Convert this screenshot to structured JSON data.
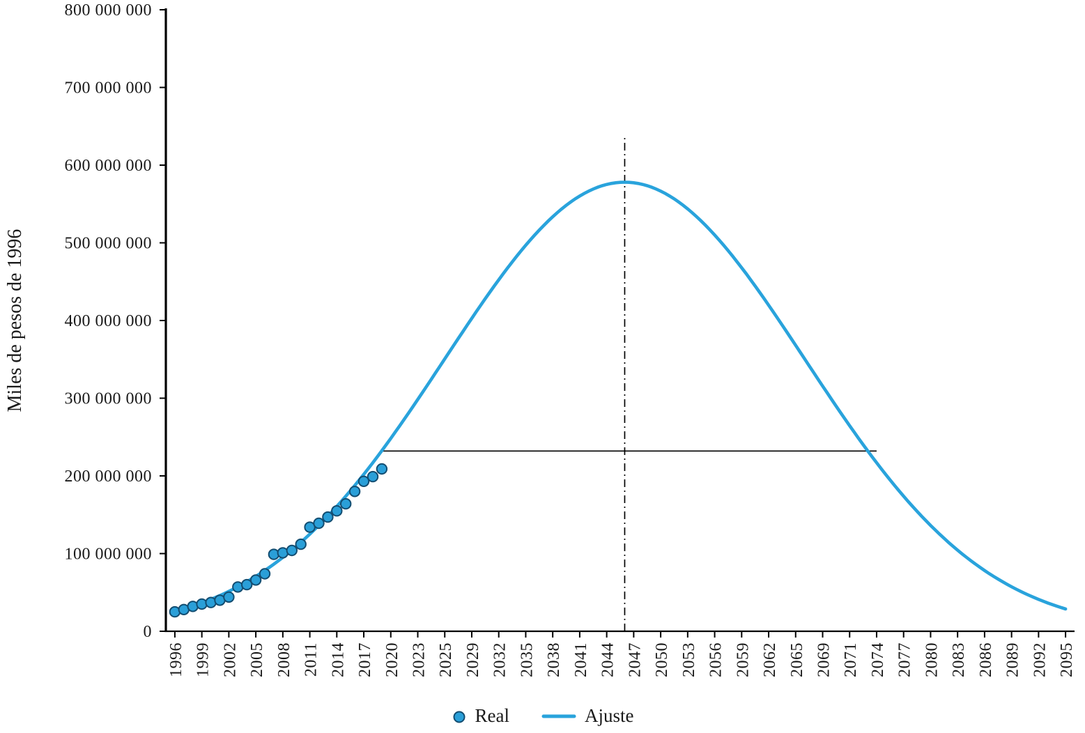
{
  "chart_data": {
    "type": "scatter",
    "title": "",
    "xlabel": "",
    "ylabel": "Miles de pesos de 1996",
    "ylim": [
      0,
      800000000
    ],
    "xlim": [
      1996,
      2095
    ],
    "grid": false,
    "background_color": "#ffffff",
    "text_color": "#1a1a1a",
    "axis_color": "#000000",
    "y_ticks": [
      0,
      100000000,
      200000000,
      300000000,
      400000000,
      500000000,
      600000000,
      700000000,
      800000000
    ],
    "y_tick_labels": [
      "0",
      "100 000 000",
      "200 000 000",
      "300 000 000",
      "400 000 000",
      "500 000 000",
      "600 000 000",
      "700 000 000",
      "800 000 000"
    ],
    "x_tick_years": [
      1996,
      1999,
      2002,
      2005,
      2008,
      2011,
      2014,
      2017,
      2020,
      2023,
      2025,
      2029,
      2032,
      2035,
      2038,
      2041,
      2044,
      2047,
      2050,
      2053,
      2056,
      2059,
      2062,
      2065,
      2069,
      2071,
      2074,
      2077,
      2080,
      2083,
      2086,
      2089,
      2092,
      2095
    ],
    "x_tick_labels": [
      "1996",
      "1999",
      "2002",
      "2005",
      "2008",
      "2011",
      "2014",
      "2017",
      "2020",
      "2023",
      "2025",
      "2029",
      "2032",
      "2035",
      "2038",
      "2041",
      "2044",
      "2047",
      "2050",
      "2053",
      "2056",
      "2059",
      "2062",
      "2065",
      "2069",
      "2071",
      "2074",
      "2077",
      "2080",
      "2083",
      "2086",
      "2089",
      "2092",
      "2095"
    ],
    "series": [
      {
        "name": "Real",
        "type": "scatter",
        "color": "#2a9fd8",
        "point_edge_color": "#134d71",
        "x": [
          1996,
          1997,
          1998,
          1999,
          2000,
          2001,
          2002,
          2003,
          2004,
          2005,
          2006,
          2007,
          2008,
          2009,
          2010,
          2011,
          2012,
          2013,
          2014,
          2015,
          2016,
          2017,
          2018,
          2019
        ],
        "y": [
          25000000,
          28000000,
          32000000,
          35000000,
          37000000,
          40000000,
          44000000,
          57000000,
          60000000,
          66000000,
          74000000,
          99000000,
          101000000,
          104000000,
          112000000,
          134000000,
          139000000,
          147000000,
          155000000,
          164000000,
          180000000,
          193000000,
          199000000,
          209000000
        ]
      },
      {
        "name": "Ajuste",
        "type": "line",
        "color": "#29a3dc",
        "model": "gaussian",
        "peak_value": 578000000,
        "peak_year": 2046,
        "sigma": 20,
        "x_start": 1996,
        "x_end": 2095,
        "sampled_points": [
          {
            "x": 1996,
            "y": 25000000
          },
          {
            "x": 2001,
            "y": 46000000
          },
          {
            "x": 2006,
            "y": 78000000
          },
          {
            "x": 2011,
            "y": 125000000
          },
          {
            "x": 2016,
            "y": 188000000
          },
          {
            "x": 2021,
            "y": 264000000
          },
          {
            "x": 2026,
            "y": 349000000
          },
          {
            "x": 2031,
            "y": 435000000
          },
          {
            "x": 2036,
            "y": 509000000
          },
          {
            "x": 2041,
            "y": 560000000
          },
          {
            "x": 2046,
            "y": 578000000
          },
          {
            "x": 2051,
            "y": 560000000
          },
          {
            "x": 2056,
            "y": 509000000
          },
          {
            "x": 2061,
            "y": 435000000
          },
          {
            "x": 2066,
            "y": 349000000
          },
          {
            "x": 2071,
            "y": 264000000
          },
          {
            "x": 2076,
            "y": 188000000
          },
          {
            "x": 2081,
            "y": 125000000
          },
          {
            "x": 2086,
            "y": 78000000
          },
          {
            "x": 2091,
            "y": 46000000
          },
          {
            "x": 2095,
            "y": 29000000
          }
        ]
      }
    ],
    "annotations": {
      "vertical_line": {
        "x": 2046,
        "y_from": 0,
        "y_to": 635000000,
        "style": "dash-dot",
        "color": "#000000"
      },
      "horizontal_line": {
        "y": 232000000,
        "x_from": 2019,
        "x_to": 2074,
        "style": "solid",
        "color": "#000000"
      }
    },
    "legend": {
      "position": "bottom-center",
      "entries": [
        {
          "label": "Real",
          "marker": "dot"
        },
        {
          "label": "Ajuste",
          "marker": "line"
        }
      ]
    }
  }
}
